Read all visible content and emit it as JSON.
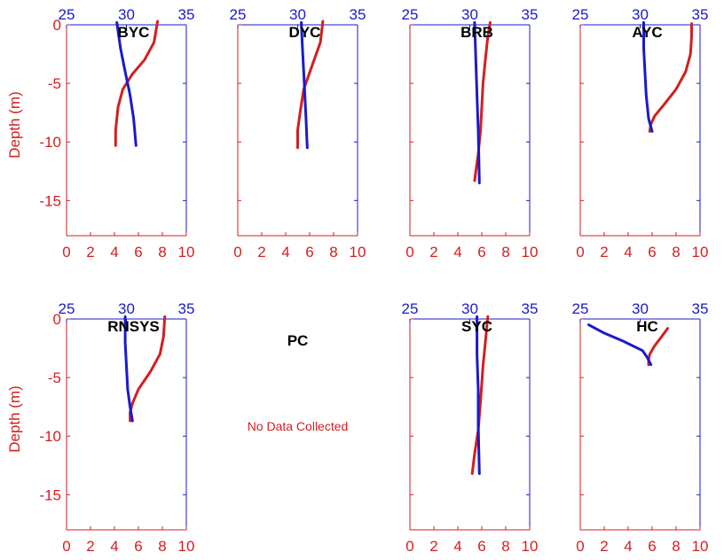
{
  "chart_data": {
    "type": "line",
    "ylabel": "Depth (m)",
    "y_ticks": [
      0,
      -5,
      -10,
      -15
    ],
    "ylim": [
      -18,
      0
    ],
    "bottom_axis": {
      "ticks": [
        "0",
        "2",
        "4",
        "6",
        "8",
        "10"
      ],
      "range": [
        0,
        10
      ],
      "color": "#d41e1e"
    },
    "top_axis": {
      "ticks": [
        "25",
        "30",
        "35"
      ],
      "range": [
        25,
        35
      ],
      "color": "#1a1acc"
    },
    "series_colors": {
      "bottom": "#d41e1e",
      "top": "#1a1acc"
    },
    "panels": [
      {
        "title": "BYC",
        "red": [
          [
            7.6,
            0.3
          ],
          [
            7.3,
            -1.5
          ],
          [
            6.5,
            -3.0
          ],
          [
            5.5,
            -4.2
          ],
          [
            4.7,
            -5.5
          ],
          [
            4.3,
            -7
          ],
          [
            4.1,
            -9
          ],
          [
            4.1,
            -10.3
          ]
        ],
        "blue": [
          [
            29.2,
            0.2
          ],
          [
            29.5,
            -2
          ],
          [
            29.9,
            -4
          ],
          [
            30.3,
            -6
          ],
          [
            30.6,
            -8
          ],
          [
            30.8,
            -10.3
          ]
        ]
      },
      {
        "title": "DYC",
        "red": [
          [
            7.1,
            0.3
          ],
          [
            6.9,
            -1.5
          ],
          [
            6.2,
            -3.5
          ],
          [
            5.5,
            -5.5
          ],
          [
            5.2,
            -7.5
          ],
          [
            5.0,
            -9
          ],
          [
            5.0,
            -10.5
          ]
        ],
        "blue": [
          [
            30.3,
            0.2
          ],
          [
            30.4,
            -2
          ],
          [
            30.5,
            -4
          ],
          [
            30.6,
            -6
          ],
          [
            30.7,
            -8
          ],
          [
            30.8,
            -10.5
          ]
        ]
      },
      {
        "title": "BRB",
        "red": [
          [
            6.7,
            0.2
          ],
          [
            6.5,
            -1
          ],
          [
            6.3,
            -3
          ],
          [
            6.1,
            -5
          ],
          [
            6.0,
            -7
          ],
          [
            5.9,
            -9
          ],
          [
            5.7,
            -11
          ],
          [
            5.5,
            -12.5
          ],
          [
            5.4,
            -13.3
          ]
        ],
        "blue": [
          [
            30.4,
            0.2
          ],
          [
            30.5,
            -3
          ],
          [
            30.6,
            -6
          ],
          [
            30.7,
            -9
          ],
          [
            30.75,
            -11
          ],
          [
            30.8,
            -13.5
          ]
        ]
      },
      {
        "title": "AYC",
        "red": [
          [
            9.3,
            0.1
          ],
          [
            9.3,
            -1
          ],
          [
            9.2,
            -2.5
          ],
          [
            8.8,
            -4
          ],
          [
            8.0,
            -5.5
          ],
          [
            7.0,
            -6.8
          ],
          [
            6.2,
            -7.8
          ],
          [
            5.9,
            -8.5
          ],
          [
            5.8,
            -9.1
          ]
        ],
        "blue": [
          [
            30.3,
            0.2
          ],
          [
            30.3,
            -2
          ],
          [
            30.4,
            -4
          ],
          [
            30.5,
            -6
          ],
          [
            30.7,
            -8
          ],
          [
            31.0,
            -9.1
          ]
        ]
      },
      {
        "title": "RNSYS",
        "red": [
          [
            8.2,
            0.2
          ],
          [
            8.1,
            -1.5
          ],
          [
            7.8,
            -3
          ],
          [
            7.0,
            -4.5
          ],
          [
            6.0,
            -6
          ],
          [
            5.5,
            -7.2
          ],
          [
            5.3,
            -8
          ],
          [
            5.3,
            -8.7
          ]
        ],
        "blue": [
          [
            29.9,
            0.2
          ],
          [
            29.9,
            -2
          ],
          [
            30.0,
            -4
          ],
          [
            30.1,
            -6
          ],
          [
            30.3,
            -7.5
          ],
          [
            30.5,
            -8.7
          ]
        ]
      },
      {
        "title": "PC",
        "no_data": "No Data Collected"
      },
      {
        "title": "SYC",
        "red": [
          [
            6.5,
            0.2
          ],
          [
            6.3,
            -2
          ],
          [
            6.1,
            -4
          ],
          [
            5.9,
            -7
          ],
          [
            5.7,
            -9.5
          ],
          [
            5.4,
            -11.5
          ],
          [
            5.2,
            -13.2
          ]
        ],
        "blue": [
          [
            30.6,
            0.2
          ],
          [
            30.6,
            -3
          ],
          [
            30.7,
            -6
          ],
          [
            30.7,
            -9
          ],
          [
            30.75,
            -11
          ],
          [
            30.8,
            -13.2
          ]
        ]
      },
      {
        "title": "HC",
        "red": [
          [
            7.3,
            -0.8
          ],
          [
            6.8,
            -1.5
          ],
          [
            6.2,
            -2.3
          ],
          [
            5.8,
            -3.0
          ],
          [
            5.7,
            -3.5
          ],
          [
            5.7,
            -3.9
          ]
        ],
        "blue": [
          [
            25.7,
            -0.5
          ],
          [
            27.0,
            -1.2
          ],
          [
            28.6,
            -1.9
          ],
          [
            30.2,
            -2.7
          ],
          [
            30.6,
            -3.3
          ],
          [
            30.9,
            -3.9
          ]
        ]
      }
    ]
  }
}
